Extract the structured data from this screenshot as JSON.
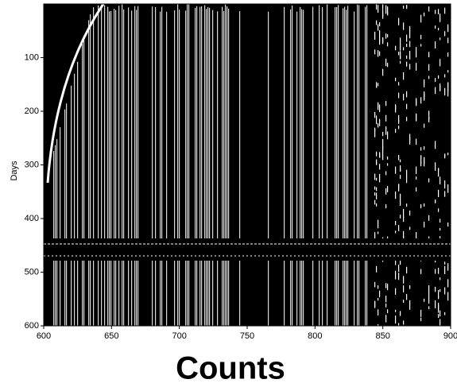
{
  "chart_data": {
    "type": "raster",
    "xlabel": "Counts",
    "ylabel": "Days",
    "xlim": [
      600,
      900
    ],
    "xticks": [
      600,
      650,
      700,
      750,
      800,
      850,
      900
    ],
    "ylim": [
      0,
      600
    ],
    "yticks": [
      100,
      200,
      300,
      400,
      500,
      600
    ],
    "y_inverted": true
  }
}
